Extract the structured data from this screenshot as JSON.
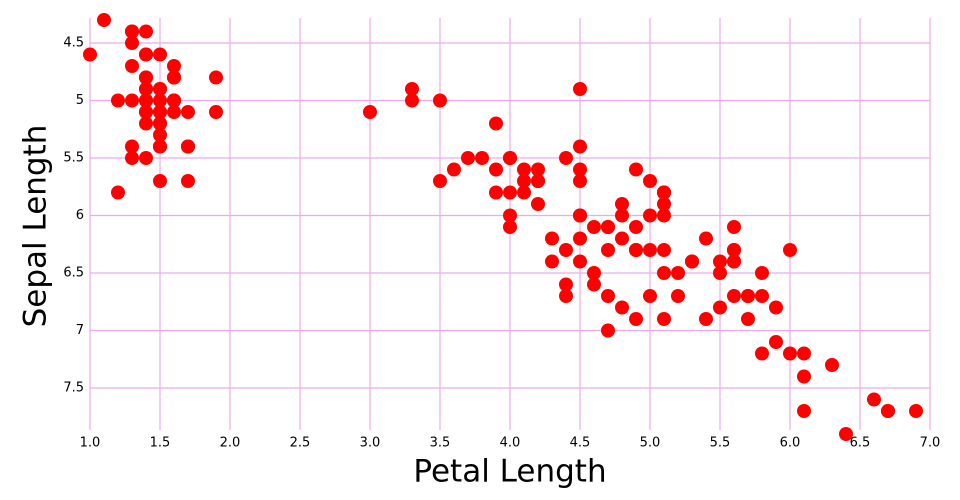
{
  "chart_data": {
    "type": "scatter",
    "xlabel": "Petal Length",
    "ylabel": "Sepal Length",
    "color": "#ff0000",
    "grid": true,
    "grid_color": "#ecaaec",
    "y_inverted": true,
    "xlim": [
      1.0,
      7.0
    ],
    "ylim": [
      4.3,
      7.9
    ],
    "xticks": [
      {
        "value": 1.0,
        "label": "1.0"
      },
      1.5,
      {
        "value": 2.0,
        "label": "2.0"
      },
      2.5,
      {
        "value": 3.0,
        "label": "3.0"
      },
      3.5,
      {
        "value": 4.0,
        "label": "4.0"
      },
      4.5,
      {
        "value": 5.0,
        "label": "5.0"
      },
      5.5,
      {
        "value": 6.0,
        "label": "6.0"
      },
      6.5,
      {
        "value": 7.0,
        "label": "7.0"
      }
    ],
    "yticks": [
      4.5,
      5,
      5.5,
      6,
      6.5,
      7,
      7.5
    ],
    "x": [
      1.4,
      1.4,
      1.3,
      1.5,
      1.4,
      1.7,
      1.4,
      1.5,
      1.4,
      1.5,
      1.5,
      1.6,
      1.4,
      1.1,
      1.2,
      1.5,
      1.3,
      1.4,
      1.7,
      1.5,
      1.7,
      1.5,
      1.0,
      1.7,
      1.9,
      1.6,
      1.6,
      1.5,
      1.4,
      1.6,
      1.6,
      1.5,
      1.5,
      1.4,
      1.5,
      1.2,
      1.3,
      1.4,
      1.3,
      1.5,
      1.3,
      1.3,
      1.3,
      1.6,
      1.9,
      1.4,
      1.6,
      1.4,
      1.5,
      1.4,
      4.7,
      4.5,
      4.9,
      4.0,
      4.6,
      4.5,
      4.7,
      3.3,
      4.6,
      3.9,
      3.5,
      4.2,
      4.0,
      4.7,
      3.6,
      4.4,
      4.5,
      4.1,
      4.5,
      3.9,
      4.8,
      4.0,
      4.9,
      4.7,
      4.3,
      4.4,
      4.8,
      5.0,
      4.5,
      3.5,
      3.8,
      3.7,
      3.9,
      5.1,
      4.5,
      4.5,
      4.7,
      4.4,
      4.1,
      4.0,
      4.4,
      4.6,
      4.0,
      3.3,
      4.2,
      4.2,
      4.2,
      4.3,
      3.0,
      4.1,
      6.0,
      5.1,
      5.9,
      5.6,
      5.8,
      6.6,
      4.5,
      6.3,
      5.8,
      6.1,
      5.1,
      5.3,
      5.5,
      5.0,
      5.1,
      5.3,
      5.5,
      6.7,
      6.9,
      5.0,
      5.7,
      4.9,
      6.7,
      4.9,
      5.7,
      6.0,
      4.8,
      4.9,
      5.6,
      5.8,
      6.1,
      6.4,
      5.6,
      5.1,
      5.6,
      6.1,
      5.6,
      5.5,
      4.8,
      5.4,
      5.6,
      5.1,
      5.1,
      5.9,
      5.7,
      5.2,
      5.0,
      5.2,
      5.4,
      5.1
    ],
    "values": [
      5.1,
      4.9,
      4.7,
      4.6,
      5.0,
      5.4,
      4.6,
      5.0,
      4.4,
      4.9,
      5.4,
      4.8,
      4.8,
      4.3,
      5.8,
      5.7,
      5.4,
      5.1,
      5.7,
      5.1,
      5.4,
      5.1,
      4.6,
      5.1,
      4.8,
      5.0,
      5.0,
      5.2,
      5.2,
      4.7,
      4.8,
      5.4,
      5.2,
      5.5,
      4.9,
      5.0,
      5.5,
      4.9,
      4.4,
      5.1,
      5.0,
      4.5,
      4.4,
      5.0,
      5.1,
      4.8,
      5.1,
      4.6,
      5.3,
      5.0,
      7.0,
      6.4,
      6.9,
      5.5,
      6.5,
      5.7,
      6.3,
      4.9,
      6.6,
      5.2,
      5.0,
      5.9,
      6.0,
      6.1,
      5.6,
      6.7,
      5.6,
      5.8,
      6.2,
      5.6,
      5.9,
      6.1,
      6.3,
      6.1,
      6.4,
      6.6,
      6.8,
      6.7,
      6.0,
      5.7,
      5.5,
      5.5,
      5.8,
      6.0,
      5.4,
      6.0,
      6.7,
      6.3,
      5.6,
      5.5,
      5.5,
      6.1,
      5.8,
      5.0,
      5.6,
      5.7,
      5.7,
      6.2,
      5.1,
      5.7,
      6.3,
      5.8,
      7.1,
      6.3,
      6.5,
      7.6,
      4.9,
      7.3,
      6.7,
      7.2,
      6.5,
      6.4,
      6.8,
      5.7,
      5.8,
      6.4,
      6.5,
      7.7,
      7.7,
      6.0,
      6.9,
      5.6,
      7.7,
      6.3,
      6.7,
      7.2,
      6.2,
      6.1,
      6.4,
      7.2,
      7.4,
      7.9,
      6.4,
      6.3,
      6.1,
      7.7,
      6.3,
      6.4,
      6.0,
      6.9,
      6.7,
      6.9,
      5.8,
      6.8,
      6.7,
      6.7,
      6.3,
      6.5,
      6.2,
      5.9
    ]
  }
}
